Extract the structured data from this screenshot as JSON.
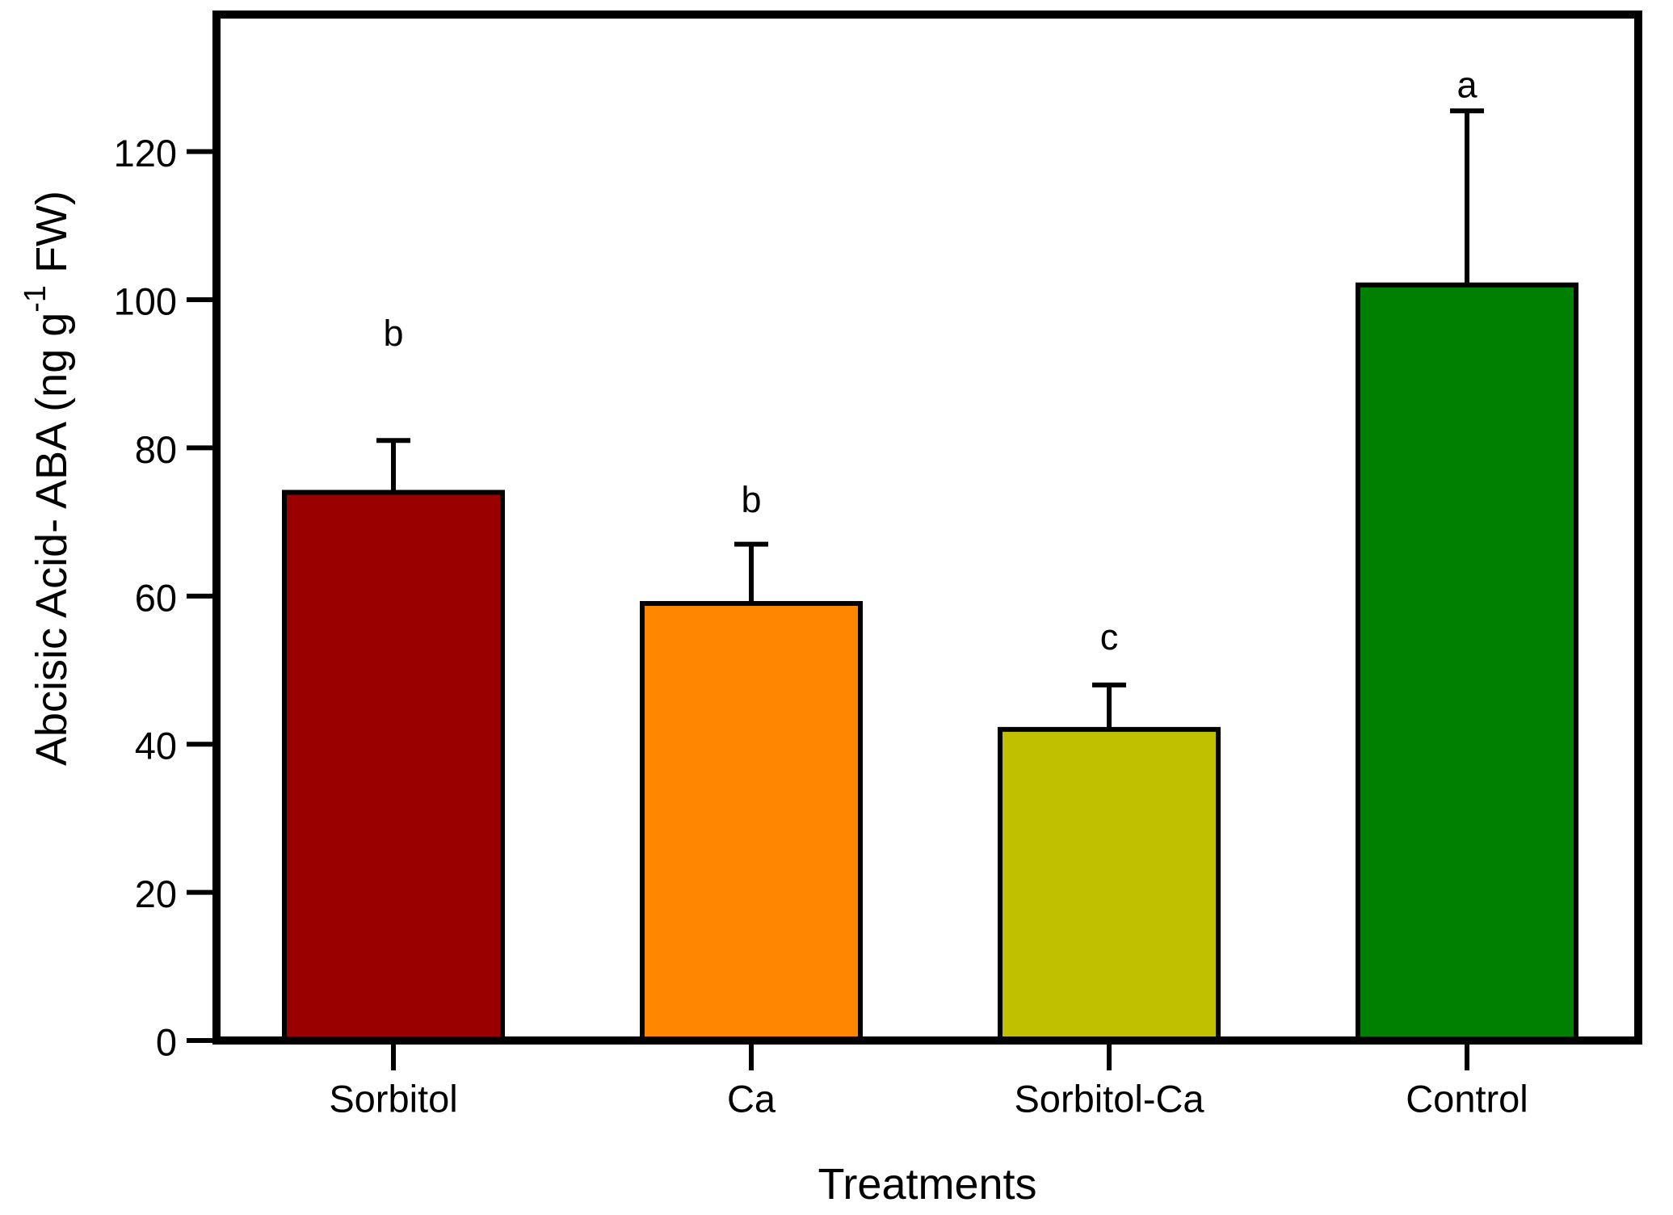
{
  "chart_data": {
    "type": "bar",
    "title": "",
    "xlabel": "Treatments",
    "ylabel": "Abcisic Acid- ABA (ng g⁻¹ FW)",
    "ylabel_parts": {
      "prefix": "Abcisic Acid- ABA (ng g",
      "superscript": "-1",
      "suffix": " FW)"
    },
    "categories": [
      "Sorbitol",
      "Ca",
      "Sorbitol-Ca",
      "Control"
    ],
    "values": [
      74,
      59,
      42,
      102
    ],
    "error_plus": [
      7,
      8,
      6,
      23.5
    ],
    "sig_letters": [
      "b",
      "b",
      "c",
      "a"
    ],
    "sig_letter_values": [
      95.5,
      73,
      54.5,
      129
    ],
    "bar_colors": [
      "#9B0000",
      "#FF8600",
      "#C0C000",
      "#008000"
    ],
    "bar_border_color": "#000000",
    "axis_color": "#000000",
    "background_color": "#FFFFFF",
    "yticks": [
      0,
      20,
      40,
      60,
      80,
      100,
      120
    ],
    "ylim": [
      0,
      138.5
    ],
    "grid": false,
    "legend": "none"
  }
}
